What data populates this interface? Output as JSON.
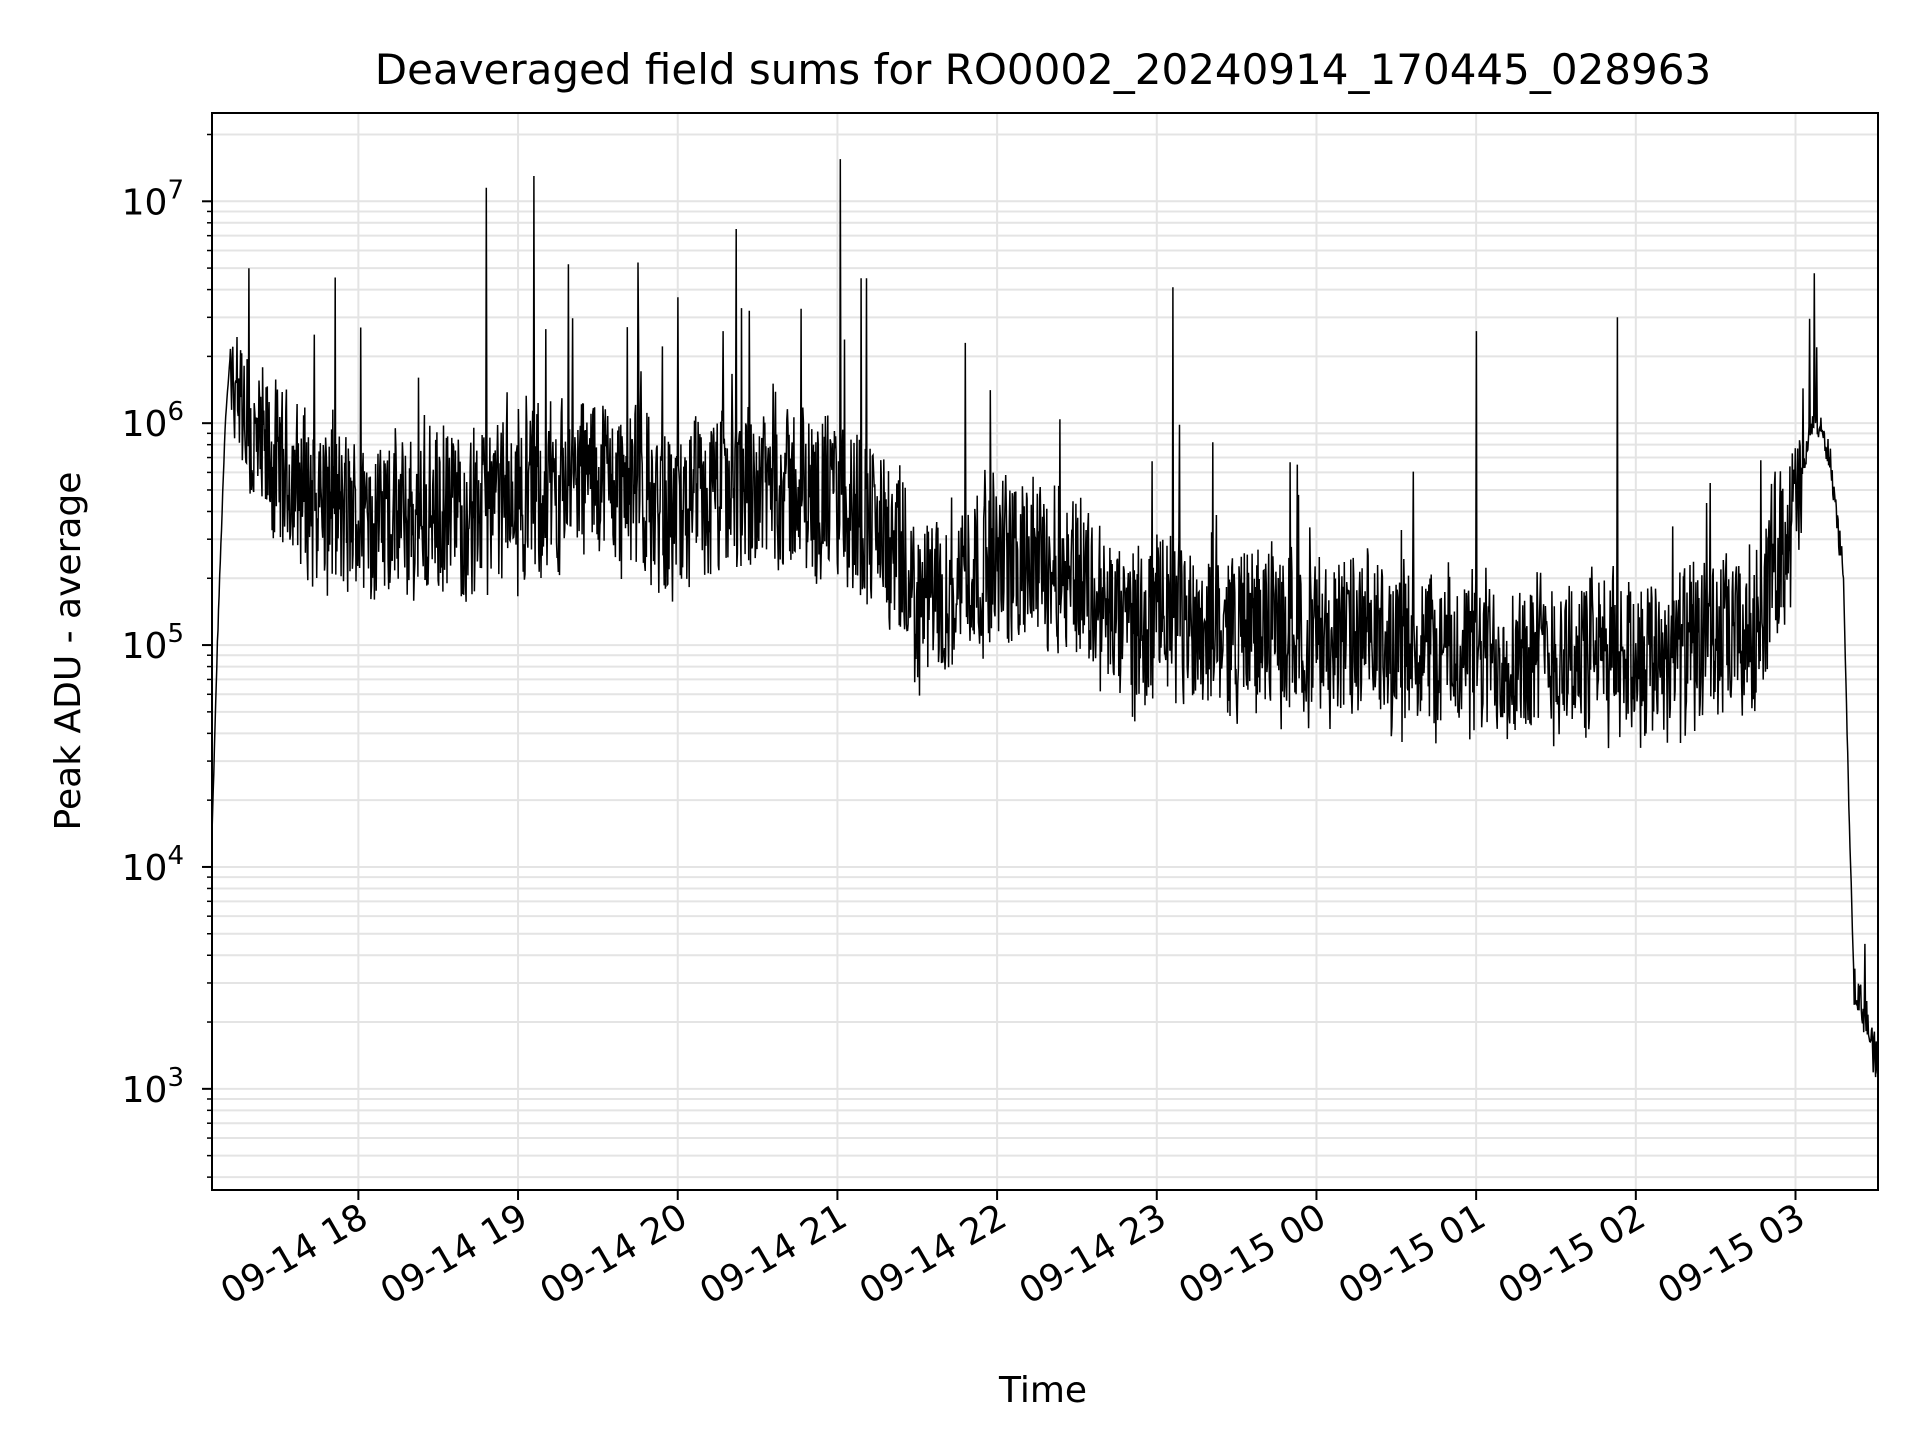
{
  "chart_data": {
    "type": "line",
    "title": "Deaveraged field sums for RO0002_20240914_170445_028963",
    "xlabel": "Time",
    "ylabel": "Peak ADU - average",
    "yscale": "log",
    "grid": true,
    "xlim": [
      "2024-09-14T17:05:00",
      "2024-09-15T03:31:00"
    ],
    "ylim": [
      350,
      25000000
    ],
    "x_ticks": [
      {
        "value": "2024-09-14T18:00",
        "label": "09-14 18"
      },
      {
        "value": "2024-09-14T19:00",
        "label": "09-14 19"
      },
      {
        "value": "2024-09-14T20:00",
        "label": "09-14 20"
      },
      {
        "value": "2024-09-14T21:00",
        "label": "09-14 21"
      },
      {
        "value": "2024-09-14T22:00",
        "label": "09-14 22"
      },
      {
        "value": "2024-09-14T23:00",
        "label": "09-14 23"
      },
      {
        "value": "2024-09-15T00:00",
        "label": "09-15 00"
      },
      {
        "value": "2024-09-15T01:00",
        "label": "09-15 01"
      },
      {
        "value": "2024-09-15T02:00",
        "label": "09-15 02"
      },
      {
        "value": "2024-09-15T03:00",
        "label": "09-15 03"
      }
    ],
    "y_ticks": [
      {
        "value": 1000,
        "base": "10",
        "exp": "3"
      },
      {
        "value": 10000,
        "base": "10",
        "exp": "4"
      },
      {
        "value": 100000,
        "base": "10",
        "exp": "5"
      },
      {
        "value": 1000000,
        "base": "10",
        "exp": "6"
      },
      {
        "value": 10000000,
        "base": "10",
        "exp": "7"
      }
    ],
    "series": [
      {
        "color": "#000000",
        "envelope": [
          {
            "x": "2024-09-14T17:05",
            "y": 14000
          },
          {
            "x": "2024-09-14T17:07",
            "y": 100000
          },
          {
            "x": "2024-09-14T17:10",
            "y": 1000000
          },
          {
            "x": "2024-09-14T17:12",
            "y": 2200000
          },
          {
            "x": "2024-09-14T17:15",
            "y": 900000
          },
          {
            "x": "2024-09-14T17:30",
            "y": 600000
          },
          {
            "x": "2024-09-14T18:00",
            "y": 350000
          },
          {
            "x": "2024-09-14T18:30",
            "y": 380000
          },
          {
            "x": "2024-09-14T19:00",
            "y": 450000
          },
          {
            "x": "2024-09-14T19:30",
            "y": 600000
          },
          {
            "x": "2024-09-14T20:00",
            "y": 380000
          },
          {
            "x": "2024-09-14T20:30",
            "y": 550000
          },
          {
            "x": "2024-09-14T21:00",
            "y": 450000
          },
          {
            "x": "2024-09-14T21:15",
            "y": 350000
          },
          {
            "x": "2024-09-14T21:30",
            "y": 150000
          },
          {
            "x": "2024-09-14T22:00",
            "y": 250000
          },
          {
            "x": "2024-09-14T22:30",
            "y": 220000
          },
          {
            "x": "2024-09-14T22:45",
            "y": 120000
          },
          {
            "x": "2024-09-14T23:00",
            "y": 130000
          },
          {
            "x": "2024-09-15T00:00",
            "y": 110000
          },
          {
            "x": "2024-09-15T01:00",
            "y": 90000
          },
          {
            "x": "2024-09-15T02:00",
            "y": 90000
          },
          {
            "x": "2024-09-15T02:45",
            "y": 110000
          },
          {
            "x": "2024-09-15T02:52",
            "y": 250000
          },
          {
            "x": "2024-09-15T03:00",
            "y": 400000
          },
          {
            "x": "2024-09-15T03:07",
            "y": 1100000
          },
          {
            "x": "2024-09-15T03:13",
            "y": 700000
          },
          {
            "x": "2024-09-15T03:18",
            "y": 200000
          },
          {
            "x": "2024-09-15T03:20",
            "y": 20000
          },
          {
            "x": "2024-09-15T03:22",
            "y": 3000
          },
          {
            "x": "2024-09-15T03:26",
            "y": 2200
          },
          {
            "x": "2024-09-15T03:31",
            "y": 1200
          }
        ],
        "spikes": [
          {
            "x": "2024-09-14T18:01",
            "y": 2700000
          },
          {
            "x": "2024-09-14T18:48",
            "y": 11500000
          },
          {
            "x": "2024-09-14T19:06",
            "y": 13000000
          },
          {
            "x": "2024-09-14T19:19",
            "y": 5200000
          },
          {
            "x": "2024-09-14T19:45",
            "y": 5300000
          },
          {
            "x": "2024-09-14T20:17",
            "y": 2600000
          },
          {
            "x": "2024-09-14T20:22",
            "y": 7500000
          },
          {
            "x": "2024-09-14T20:24",
            "y": 3300000
          },
          {
            "x": "2024-09-14T21:01",
            "y": 15500000
          },
          {
            "x": "2024-09-14T21:09",
            "y": 4500000
          },
          {
            "x": "2024-09-14T21:11",
            "y": 4500000
          },
          {
            "x": "2024-09-14T21:48",
            "y": 2300000
          },
          {
            "x": "2024-09-14T23:06",
            "y": 4100000
          },
          {
            "x": "2024-09-15T01:00",
            "y": 2600000
          },
          {
            "x": "2024-09-15T01:53",
            "y": 3000000
          },
          {
            "x": "2024-09-15T03:08",
            "y": 2200000
          },
          {
            "x": "2024-09-15T03:26",
            "y": 4500
          }
        ]
      }
    ]
  }
}
